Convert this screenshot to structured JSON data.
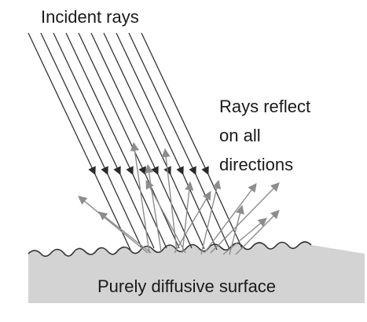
{
  "labels": {
    "incident_rays": "Incident rays",
    "reflect_line_1": "Rays reflect",
    "reflect_line_2": "on all",
    "reflect_line_3": "directions",
    "surface": "Purely diffusive surface"
  },
  "colors": {
    "incident_ray": "#333333",
    "reflected_ray": "#8c8c8c",
    "surface_fill": "#d3d3d3",
    "surface_edge": "#333333",
    "text": "#1a1a1a"
  }
}
